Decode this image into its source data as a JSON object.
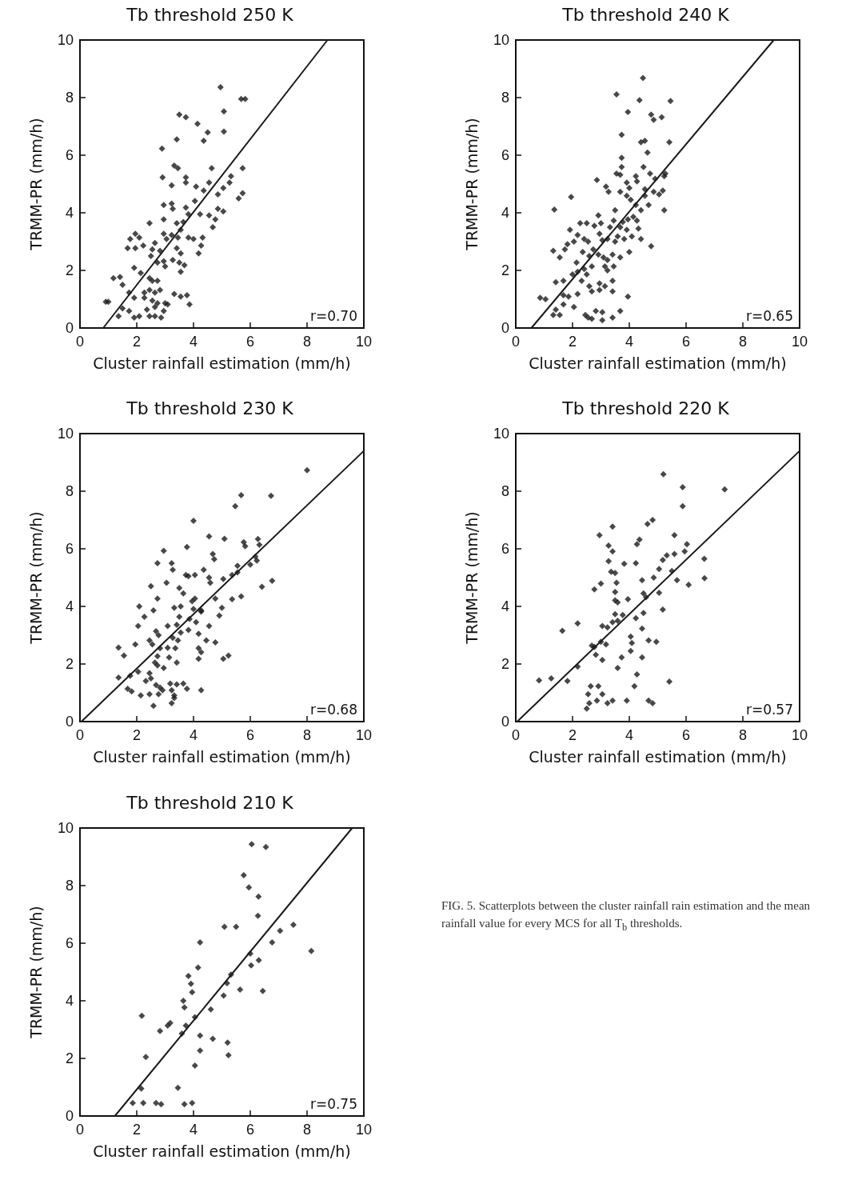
{
  "chart_data": [
    {
      "type": "scatter",
      "title": "Tb threshold 250 K",
      "xlabel": "Cluster rainfall estimation (mm/h)",
      "ylabel": "TRMM-PR (mm/h)",
      "xlim": [
        0,
        10
      ],
      "ylim": [
        0,
        10
      ],
      "xticks": [
        0,
        2,
        4,
        6,
        8,
        10
      ],
      "yticks": [
        0,
        2,
        4,
        6,
        8,
        10
      ],
      "marker": "diamond",
      "annotations": [
        "r=0.70"
      ],
      "series": [
        {
          "type": "scatter",
          "color": "#1a1a1a",
          "x": [
            4.95,
            5.68,
            5.82,
            3.5,
            3.73,
            5.07,
            4.14,
            4.5,
            5.07,
            3.41,
            4.36,
            2.89,
            3.32,
            3.45,
            4.64,
            5.73,
            2.91,
            3.73,
            3.73,
            3.23,
            4.09,
            4.55,
            5.32,
            5.27,
            5.05,
            4.86,
            5.73,
            5.59,
            2.95,
            3.23,
            3.27,
            3.73,
            3.82,
            4.05,
            4.36,
            4.23,
            4.55,
            4.77,
            4.86,
            5.05,
            4.68,
            2.45,
            2.95,
            3.41,
            3.64,
            3.55,
            1.95,
            1.77,
            2.09,
            2.95,
            3.05,
            3.23,
            3.45,
            3.82,
            4.0,
            4.32,
            1.68,
            1.95,
            2.23,
            2.64,
            2.55,
            2.82,
            3.41,
            3.55,
            4.27,
            4.18,
            2.5,
            2.73,
            2.95,
            3.0,
            3.27,
            3.5,
            3.68,
            3.55,
            1.91,
            2.14,
            1.18,
            1.41,
            1.5,
            1.73,
            1.91,
            2.45,
            2.55,
            2.73,
            2.27,
            2.45,
            2.64,
            2.82,
            2.27,
            2.55,
            2.73,
            3.0,
            3.09,
            2.36,
            2.64,
            3.32,
            3.55,
            3.77,
            3.86,
            0.91,
            1.0,
            1.5,
            1.73,
            1.36,
            1.91,
            2.09,
            2.45,
            2.64,
            2.95,
            2.86
          ],
          "values": [
            8.36,
            7.95,
            7.95,
            7.41,
            7.32,
            7.52,
            7.09,
            6.79,
            6.82,
            6.55,
            6.5,
            6.23,
            5.64,
            5.55,
            5.55,
            5.55,
            5.23,
            5.23,
            5.05,
            4.95,
            4.91,
            5.05,
            5.27,
            5.05,
            4.86,
            4.64,
            4.68,
            4.5,
            4.27,
            4.32,
            4.14,
            4.18,
            3.95,
            4.41,
            4.77,
            3.95,
            3.91,
            3.77,
            4.14,
            4.05,
            3.5,
            3.64,
            3.77,
            3.64,
            3.68,
            3.41,
            3.27,
            3.09,
            3.14,
            3.27,
            3.09,
            3.23,
            3.14,
            3.14,
            3.09,
            3.14,
            2.77,
            2.77,
            2.86,
            2.95,
            2.73,
            2.68,
            2.77,
            2.59,
            2.86,
            2.59,
            2.5,
            2.27,
            2.32,
            2.14,
            2.36,
            2.27,
            2.18,
            1.95,
            2.09,
            1.91,
            1.73,
            1.77,
            1.5,
            1.23,
            1.05,
            1.73,
            1.64,
            1.64,
            1.23,
            1.32,
            1.23,
            1.32,
            1.05,
            0.95,
            0.86,
            0.86,
            0.82,
            0.64,
            0.73,
            1.18,
            1.09,
            1.14,
            0.82,
            0.91,
            0.91,
            0.68,
            0.59,
            0.41,
            0.36,
            0.41,
            0.41,
            0.41,
            0.59,
            0.36
          ]
        },
        {
          "type": "line",
          "marker": "none",
          "color": "#1a1a1a",
          "x": [
            0.82,
            8.72
          ],
          "values": [
            0,
            10
          ]
        }
      ]
    },
    {
      "type": "scatter",
      "title": "Tb threshold 240 K",
      "xlabel": "Cluster rainfall estimation (mm/h)",
      "ylabel": "TRMM-PR (mm/h)",
      "xlim": [
        0,
        10
      ],
      "ylim": [
        0,
        10
      ],
      "xticks": [
        0,
        2,
        4,
        6,
        8,
        10
      ],
      "yticks": [
        0,
        2,
        4,
        6,
        8,
        10
      ],
      "marker": "diamond",
      "annotations": [
        "r=0.65"
      ],
      "series": [
        {
          "type": "scatter",
          "color": "#1a1a1a",
          "x": [
            4.48,
            3.55,
            4.36,
            5.45,
            3.95,
            4.77,
            4.86,
            5.14,
            3.73,
            4.41,
            4.55,
            5.41,
            4.64,
            3.73,
            4.5,
            3.73,
            3.55,
            3.68,
            2.86,
            3.18,
            3.27,
            3.91,
            4.0,
            4.23,
            4.27,
            4.73,
            4.91,
            5.23,
            5.27,
            3.68,
            3.91,
            4.05,
            4.55,
            4.55,
            4.86,
            5.05,
            5.18,
            5.23,
            4.68,
            4.41,
            4.23,
            1.95,
            1.36,
            2.91,
            2.77,
            3.0,
            2.27,
            2.5,
            3.5,
            3.45,
            3.32,
            3.77,
            3.95,
            4.14,
            3.68,
            3.91,
            4.27,
            4.32,
            1.91,
            2.18,
            2.05,
            1.82,
            2.41,
            2.55,
            2.95,
            3.05,
            3.23,
            3.5,
            3.59,
            3.82,
            4.09,
            4.41,
            4.77,
            1.32,
            1.55,
            1.73,
            2.36,
            2.59,
            2.73,
            2.91,
            3.09,
            3.23,
            3.41,
            3.68,
            4.0,
            2.14,
            2.41,
            2.68,
            3.14,
            3.23,
            3.45,
            2.0,
            2.18,
            2.5,
            1.41,
            1.68,
            2.32,
            2.59,
            2.95,
            3.14,
            3.41,
            0.86,
            1.05,
            1.68,
            1.86,
            2.18,
            2.68,
            2.95,
            3.41,
            3.95,
            1.41,
            1.68,
            1.32,
            1.55,
            2.05,
            2.45,
            2.55,
            2.68,
            2.82,
            3.05,
            3.68,
            3.05,
            3.41
          ],
          "values": [
            8.68,
            8.11,
            7.91,
            7.88,
            7.5,
            7.41,
            7.23,
            7.32,
            6.71,
            6.45,
            6.5,
            6.45,
            6.09,
            5.91,
            5.59,
            5.59,
            5.36,
            5.32,
            5.14,
            4.91,
            4.73,
            5.05,
            4.86,
            5.27,
            5.09,
            5.36,
            5.18,
            5.27,
            5.36,
            4.73,
            4.59,
            4.45,
            4.82,
            4.59,
            4.73,
            4.64,
            4.77,
            4.09,
            4.27,
            4.09,
            4.27,
            4.55,
            4.11,
            3.91,
            3.55,
            3.64,
            3.64,
            3.64,
            4.09,
            3.73,
            3.5,
            3.68,
            3.77,
            3.86,
            3.5,
            3.41,
            3.73,
            3.45,
            3.41,
            3.23,
            3.0,
            2.91,
            3.09,
            3.0,
            3.27,
            3.05,
            3.09,
            3.0,
            3.18,
            3.09,
            3.18,
            3.09,
            2.84,
            2.68,
            2.45,
            2.73,
            2.64,
            2.5,
            2.73,
            2.55,
            2.45,
            2.36,
            2.55,
            2.45,
            2.64,
            2.27,
            2.05,
            2.14,
            2.14,
            2.0,
            2.14,
            1.86,
            1.95,
            1.86,
            1.59,
            1.64,
            1.64,
            1.45,
            1.55,
            1.45,
            1.64,
            1.05,
            1.0,
            1.14,
            1.09,
            1.18,
            1.27,
            1.32,
            1.27,
            1.09,
            0.64,
            0.82,
            0.45,
            0.45,
            0.73,
            0.45,
            0.36,
            0.32,
            0.59,
            0.55,
            0.59,
            0.27,
            0.36
          ]
        },
        {
          "type": "line",
          "marker": "none",
          "color": "#1a1a1a",
          "x": [
            0.55,
            9.09
          ],
          "values": [
            0,
            10
          ]
        }
      ]
    },
    {
      "type": "scatter",
      "title": "Tb threshold 230 K",
      "xlabel": "Cluster rainfall estimation (mm/h)",
      "ylabel": "TRMM-PR (mm/h)",
      "xlim": [
        0,
        10
      ],
      "ylim": [
        0,
        10
      ],
      "xticks": [
        0,
        2,
        4,
        6,
        8,
        10
      ],
      "yticks": [
        0,
        2,
        4,
        6,
        8,
        10
      ],
      "marker": "diamond",
      "annotations": [
        "r=0.68"
      ],
      "series": [
        {
          "type": "scatter",
          "color": "#1a1a1a",
          "x": [
            8.0,
            5.68,
            6.73,
            5.47,
            4.0,
            4.55,
            5.09,
            5.77,
            5.82,
            6.27,
            6.32,
            3.77,
            2.95,
            2.73,
            3.23,
            3.27,
            4.68,
            4.73,
            4.36,
            3.73,
            3.82,
            4.05,
            4.55,
            4.59,
            5.55,
            5.36,
            5.55,
            6.18,
            6.23,
            6.0,
            5.05,
            3.05,
            2.5,
            3.5,
            3.64,
            4.05,
            4.77,
            2.73,
            3.95,
            4.0,
            3.32,
            3.55,
            2.59,
            2.09,
            4.27,
            4.27,
            5.0,
            4.91,
            5.36,
            5.68,
            6.41,
            6.77,
            2.27,
            3.5,
            3.86,
            4.09,
            4.55,
            2.05,
            3.09,
            3.41,
            2.68,
            2.77,
            2.45,
            3.55,
            3.82,
            4.18,
            3.27,
            3.45,
            4.45,
            4.77,
            1.95,
            2.55,
            2.82,
            3.09,
            3.36,
            4.18,
            4.27,
            1.36,
            1.55,
            2.73,
            3.14,
            3.41,
            4.18,
            5.05,
            5.23,
            2.64,
            2.73,
            2.95,
            2.05,
            1.36,
            1.77,
            2.45,
            2.32,
            2.5,
            2.68,
            2.82,
            1.68,
            1.82,
            2.14,
            2.45,
            2.77,
            2.91,
            3.18,
            3.23,
            3.41,
            3.64,
            3.77,
            3.32,
            3.23,
            3.32,
            2.59,
            4.27
          ],
          "values": [
            8.73,
            7.86,
            7.84,
            7.48,
            6.97,
            6.43,
            6.35,
            6.23,
            6.09,
            6.34,
            6.14,
            6.06,
            5.93,
            5.5,
            5.5,
            5.27,
            5.82,
            5.64,
            5.27,
            5.09,
            5.05,
            5.09,
            5.0,
            4.82,
            5.41,
            5.09,
            5.18,
            5.73,
            5.59,
            5.45,
            4.95,
            4.82,
            4.7,
            4.64,
            4.45,
            4.27,
            4.27,
            4.27,
            4.18,
            3.91,
            3.95,
            4.0,
            3.86,
            4.0,
            3.86,
            3.82,
            3.95,
            3.68,
            4.25,
            4.35,
            4.68,
            4.89,
            3.64,
            3.64,
            3.56,
            3.45,
            3.32,
            3.32,
            3.32,
            3.36,
            3.14,
            3.0,
            2.82,
            3.09,
            3.18,
            3.05,
            2.91,
            2.82,
            2.82,
            2.75,
            2.68,
            2.68,
            2.55,
            2.56,
            2.55,
            2.55,
            2.41,
            2.57,
            2.29,
            2.27,
            2.23,
            2.05,
            2.18,
            2.18,
            2.29,
            2.05,
            1.95,
            1.86,
            1.73,
            1.53,
            1.59,
            1.68,
            1.41,
            1.5,
            1.27,
            1.18,
            1.14,
            1.05,
            0.91,
            0.95,
            0.95,
            1.09,
            1.32,
            1.09,
            1.29,
            1.32,
            1.14,
            0.91,
            0.64,
            0.82,
            0.55,
            1.09
          ]
        },
        {
          "type": "line",
          "marker": "none",
          "color": "#1a1a1a",
          "x": [
            0.05,
            10
          ],
          "values": [
            0,
            9.4
          ]
        }
      ]
    },
    {
      "type": "scatter",
      "title": "Tb threshold 220 K",
      "xlabel": "Cluster rainfall estimation (mm/h)",
      "ylabel": "TRMM-PR (mm/h)",
      "xlim": [
        0,
        10
      ],
      "ylim": [
        0,
        10
      ],
      "xticks": [
        0,
        2,
        4,
        6,
        8,
        10
      ],
      "yticks": [
        0,
        2,
        4,
        6,
        8,
        10
      ],
      "marker": "diamond",
      "annotations": [
        "r=0.57"
      ],
      "series": [
        {
          "type": "scatter",
          "color": "#1a1a1a",
          "x": [
            5.2,
            5.88,
            7.36,
            5.88,
            4.64,
            4.82,
            3.41,
            2.95,
            5.59,
            4.36,
            4.27,
            3.27,
            3.41,
            6.03,
            5.59,
            5.32,
            5.95,
            5.18,
            6.64,
            3.27,
            3.82,
            4.23,
            5.05,
            4.86,
            5.5,
            5.68,
            3.36,
            3.5,
            6.65,
            6.09,
            3.0,
            2.77,
            3.55,
            3.5,
            4.45,
            4.5,
            4.59,
            5.05,
            3.5,
            3.59,
            3.95,
            5.18,
            3.5,
            3.77,
            4.5,
            4.23,
            3.41,
            3.59,
            3.05,
            3.23,
            1.64,
            2.18,
            4.45,
            4.05,
            4.09,
            4.68,
            4.95,
            2.68,
            2.77,
            3.0,
            3.18,
            2.82,
            3.05,
            4.05,
            3.73,
            3.59,
            4.45,
            2.18,
            4.27,
            4.18,
            5.41,
            0.82,
            1.25,
            1.82,
            2.64,
            2.91,
            2.55,
            3.05,
            2.86,
            2.59,
            2.5,
            3.23,
            3.41,
            3.91,
            4.68,
            4.82
          ],
          "values": [
            8.59,
            8.14,
            8.06,
            7.48,
            6.86,
            7.0,
            6.77,
            6.47,
            6.47,
            6.32,
            6.16,
            6.11,
            5.91,
            6.16,
            5.82,
            5.77,
            5.91,
            5.61,
            5.65,
            5.57,
            5.48,
            5.5,
            5.3,
            5.0,
            5.23,
            4.91,
            5.2,
            5.16,
            4.98,
            4.75,
            4.79,
            4.59,
            4.82,
            4.5,
            4.91,
            4.45,
            4.32,
            4.47,
            4.21,
            4.14,
            4.25,
            3.89,
            3.73,
            3.7,
            3.77,
            3.59,
            3.45,
            3.5,
            3.32,
            3.27,
            3.15,
            3.41,
            3.23,
            2.95,
            2.73,
            2.82,
            2.77,
            2.64,
            2.59,
            2.77,
            2.68,
            2.32,
            2.14,
            2.45,
            2.23,
            1.86,
            2.23,
            1.91,
            1.64,
            1.23,
            1.39,
            1.43,
            1.5,
            1.41,
            1.23,
            1.23,
            0.95,
            0.95,
            0.73,
            0.64,
            0.45,
            0.64,
            0.73,
            0.73,
            0.73,
            0.64
          ]
        },
        {
          "type": "line",
          "marker": "none",
          "color": "#1a1a1a",
          "x": [
            0.05,
            10
          ],
          "values": [
            0,
            9.4
          ]
        }
      ]
    },
    {
      "type": "scatter",
      "title": "Tb threshold 210 K",
      "xlabel": "Cluster rainfall estimation (mm/h)",
      "ylabel": "TRMM-PR (mm/h)",
      "xlim": [
        0,
        10
      ],
      "ylim": [
        0,
        10
      ],
      "xticks": [
        0,
        2,
        4,
        6,
        8,
        10
      ],
      "yticks": [
        0,
        2,
        4,
        6,
        8,
        10
      ],
      "marker": "diamond",
      "annotations": [
        "r=0.75"
      ],
      "series": [
        {
          "type": "scatter",
          "color": "#1a1a1a",
          "x": [
            6.05,
            6.55,
            5.77,
            5.95,
            6.29,
            6.27,
            5.09,
            5.5,
            7.52,
            7.05,
            4.23,
            6.77,
            8.15,
            6.0,
            6.03,
            6.3,
            4.16,
            3.82,
            5.32,
            3.91,
            3.95,
            5.18,
            5.64,
            6.44,
            5.06,
            3.64,
            3.68,
            4.61,
            2.18,
            4.05,
            3.18,
            3.09,
            2.82,
            3.73,
            3.59,
            4.23,
            4.68,
            5.2,
            4.23,
            5.23,
            2.32,
            4.05,
            2.16,
            3.45,
            1.86,
            2.23,
            2.68,
            2.86,
            3.68,
            3.95
          ],
          "values": [
            9.44,
            9.34,
            8.36,
            7.94,
            7.62,
            6.95,
            6.57,
            6.57,
            6.64,
            6.43,
            6.03,
            6.03,
            5.73,
            5.64,
            5.23,
            5.41,
            5.15,
            4.86,
            4.91,
            4.59,
            4.3,
            4.61,
            4.39,
            4.34,
            4.18,
            4.0,
            3.77,
            3.7,
            3.48,
            3.43,
            3.23,
            3.14,
            2.95,
            3.14,
            2.86,
            2.79,
            2.68,
            2.55,
            2.27,
            2.11,
            2.05,
            1.75,
            0.95,
            0.98,
            0.45,
            0.45,
            0.45,
            0.41,
            0.41,
            0.45
          ]
        },
        {
          "type": "line",
          "marker": "none",
          "color": "#1a1a1a",
          "x": [
            1.23,
            9.59
          ],
          "values": [
            0,
            10
          ]
        }
      ]
    },
    {
      "type": "other",
      "annotations": [
        "FIG. 5. Scatterplots between the cluster rainfall rain estimation and the mean rainfall value for every MCS for all T$_{b}$ thresholds."
      ]
    }
  ]
}
